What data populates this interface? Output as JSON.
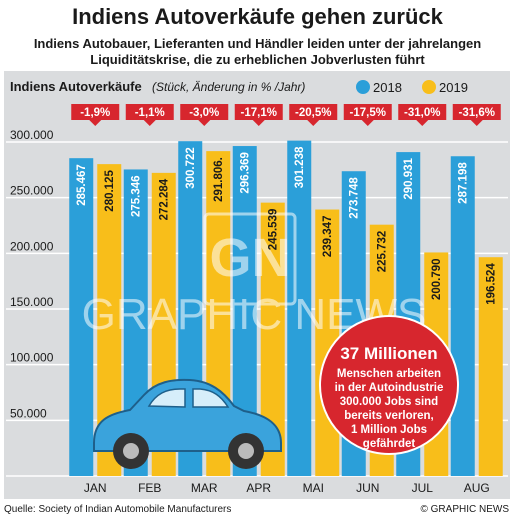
{
  "header": {
    "title": "Indiens Autoverkäufe gehen zurück",
    "subtitle_line1": "Indiens Autobauer, Lieferanten und Händler leiden unter der jahrelangen",
    "subtitle_line2": "Liquiditätskrise, die zu erheblichen Jobverlusten führt"
  },
  "chart_data": {
    "type": "bar",
    "title": "Indiens Autoverkäufe",
    "subtitle": "(Stück, Änderung in % /Jahr)",
    "categories": [
      "JAN",
      "FEB",
      "MAR",
      "APR",
      "MAI",
      "JUN",
      "JUL",
      "AUG"
    ],
    "series": [
      {
        "name": "2018",
        "color": "#2b9fd9",
        "values": [
          285467,
          275346,
          300722,
          296369,
          301238,
          273748,
          290931,
          287198
        ],
        "labels": [
          "285.467",
          "275.346",
          "300.722",
          "296.369",
          "301.238",
          "273.748",
          "290.931",
          "287.198"
        ]
      },
      {
        "name": "2019",
        "color": "#f8be1a",
        "values": [
          280125,
          272284,
          291806,
          245539,
          239347,
          225732,
          200790,
          196524
        ],
        "labels": [
          "280.125",
          "272.284",
          "291.806.",
          "245.539",
          "239.347",
          "225.732",
          "200.790",
          "196.524"
        ]
      }
    ],
    "changes": [
      "-1,9%",
      "-1,1%",
      "-3,0%",
      "-17,1%",
      "-20,5%",
      "-17,5%",
      "-31,0%",
      "-31,6%"
    ],
    "ylim": [
      0,
      300000
    ],
    "yticks": [
      "300.000",
      "250.000",
      "200.000",
      "150.000",
      "100.000",
      "50.000"
    ],
    "ytick_values": [
      300000,
      250000,
      200000,
      150000,
      100000,
      50000
    ],
    "grid": true,
    "legend_position": "top-right",
    "change_color": "#d7262e"
  },
  "callout": {
    "headline": "37 Millionen",
    "body_lines": [
      "Menschen arbeiten",
      "in der Autoindustrie",
      "300.000 Jobs sind",
      "bereits verloren,",
      "1 Million Jobs",
      "gefährdet"
    ],
    "color": "#d7262e"
  },
  "watermark": {
    "text": "GRAPHIC NEWS",
    "mark": "GN"
  },
  "footer": {
    "source": "Quelle: Society of Indian Automobile Manufacturers",
    "credit": "© GRAPHIC NEWS"
  }
}
